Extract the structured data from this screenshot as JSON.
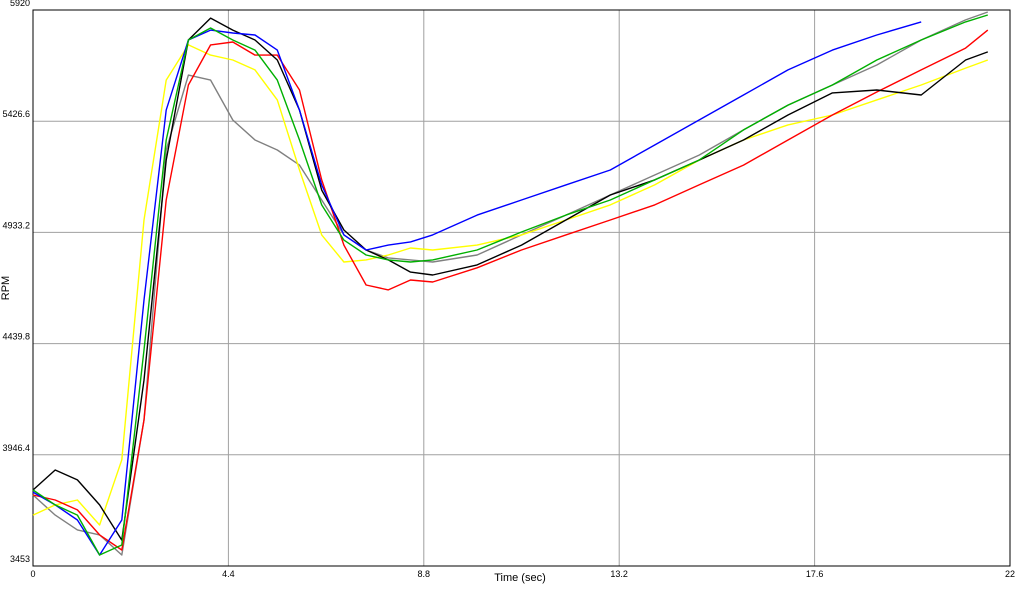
{
  "chart_data": {
    "type": "line",
    "x_label": "Time (sec)",
    "y_label": "RPM",
    "xlim": [
      0,
      22
    ],
    "xticks": [
      0,
      4.4,
      8.8,
      13.2,
      17.6,
      22
    ],
    "ylim": [
      3453,
      5920
    ],
    "yticks": [
      3453,
      3946.4,
      4439.8,
      4933.2,
      5426.6,
      5920
    ],
    "grid": true,
    "x": [
      0,
      0.5,
      1,
      1.5,
      2,
      2.5,
      3,
      3.5,
      4,
      4.5,
      5,
      5.5,
      6,
      6.5,
      7,
      7.5,
      8,
      8.5,
      9,
      10,
      11,
      12,
      13,
      14,
      15,
      16,
      17,
      18,
      19,
      20,
      21,
      21.5
    ],
    "series": [
      {
        "color": "#808080",
        "values": [
          3768,
          3679,
          3613,
          3591,
          3502,
          4101,
          5299,
          5631,
          5609,
          5432,
          5343,
          5299,
          5232,
          5077,
          4922,
          4855,
          4820,
          4811,
          4802,
          4833,
          4922,
          5010,
          5099,
          5188,
          5276,
          5388,
          5498,
          5587,
          5676,
          5787,
          5876,
          5911
        ]
      },
      {
        "color": "#ffff00",
        "values": [
          3679,
          3724,
          3746,
          3635,
          3924,
          4988,
          5609,
          5765,
          5720,
          5698,
          5654,
          5521,
          5210,
          4922,
          4802,
          4811,
          4833,
          4864,
          4855,
          4877,
          4922,
          4988,
          5055,
          5144,
          5254,
          5343,
          5410,
          5454,
          5521,
          5587,
          5662,
          5698
        ]
      },
      {
        "color": "#ff0000",
        "values": [
          3768,
          3746,
          3702,
          3591,
          3524,
          4101,
          5077,
          5587,
          5765,
          5778,
          5720,
          5720,
          5565,
          5166,
          4877,
          4700,
          4678,
          4722,
          4713,
          4776,
          4855,
          4922,
          4988,
          5055,
          5144,
          5232,
          5343,
          5454,
          5556,
          5654,
          5751,
          5831
        ]
      },
      {
        "color": "#000000",
        "values": [
          3790,
          3879,
          3835,
          3724,
          3568,
          4278,
          5254,
          5787,
          5884,
          5831,
          5787,
          5698,
          5476,
          5121,
          4944,
          4855,
          4811,
          4757,
          4744,
          4789,
          4877,
          4988,
          5099,
          5166,
          5254,
          5343,
          5454,
          5552,
          5565,
          5543,
          5698,
          5734
        ]
      },
      {
        "color": "#0000ff",
        "values": [
          3781,
          3724,
          3657,
          3502,
          3657,
          4633,
          5476,
          5787,
          5831,
          5818,
          5809,
          5742,
          5476,
          5144,
          4922,
          4855,
          4877,
          4891,
          4922,
          5010,
          5077,
          5144,
          5210,
          5321,
          5432,
          5543,
          5654,
          5742,
          5809,
          5867,
          null,
          null
        ]
      },
      {
        "color": "#00b000",
        "values": [
          3790,
          3724,
          3679,
          3502,
          3546,
          4411,
          5343,
          5787,
          5840,
          5787,
          5742,
          5609,
          5343,
          5055,
          4899,
          4833,
          4811,
          4802,
          4811,
          4855,
          4935,
          5010,
          5077,
          5166,
          5254,
          5388,
          5498,
          5587,
          5698,
          5787,
          5867,
          5898
        ]
      }
    ]
  }
}
